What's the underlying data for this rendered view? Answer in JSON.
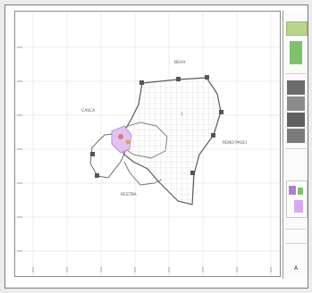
{
  "map": {
    "labels": {
      "north": "BEHA",
      "west": "CASCA",
      "center": "Σ",
      "south": "RESTRA",
      "east": "RENO PASCI"
    },
    "colors": {
      "paper": "#ffffff",
      "grid": "#e6e6e6",
      "boundary": "#5b5b5b",
      "fill_pattern": "#b9cfb1",
      "highlight_purple": "#c58bd9",
      "highlight_red": "#d77b7b",
      "highlight_orange": "#e0a24f",
      "vertex": "#555555"
    }
  },
  "titleblock": {
    "logo_color": "#b8d58a",
    "accent_green": "#7cc36b",
    "accent_purple": "#b57ad1",
    "stamp_text": "A"
  }
}
